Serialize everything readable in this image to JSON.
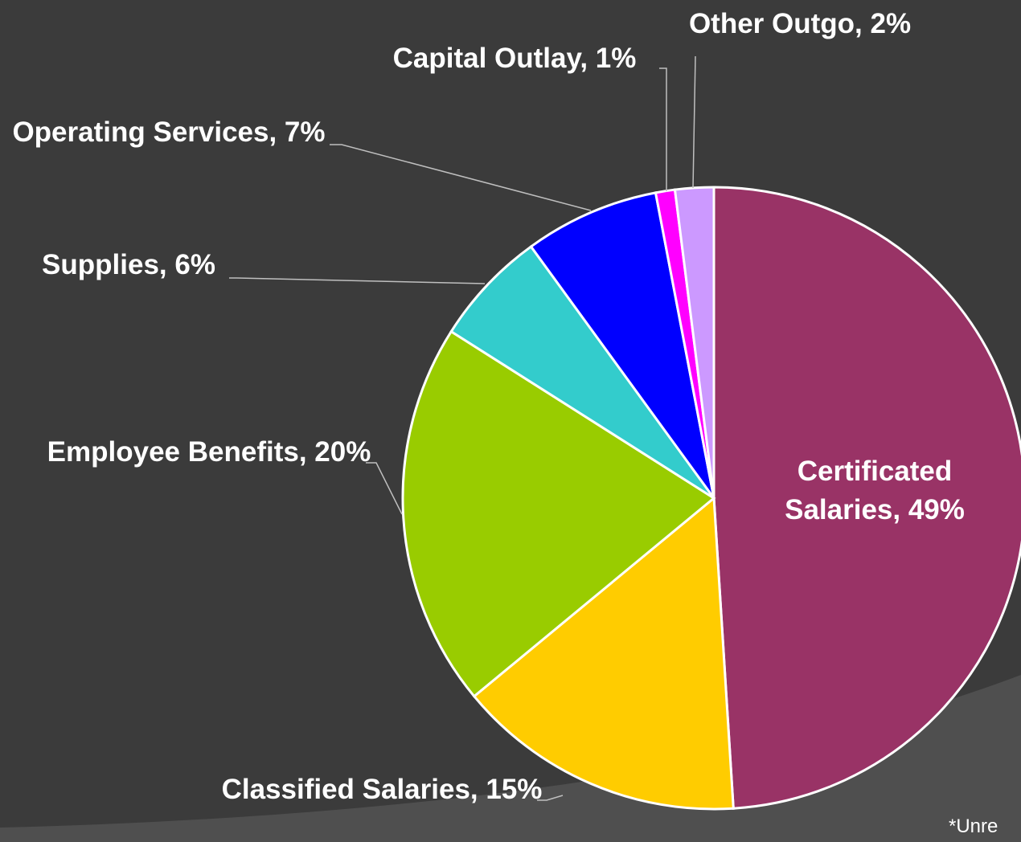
{
  "chart_data": {
    "type": "pie",
    "values": [
      49,
      15,
      20,
      6,
      7,
      1,
      2
    ],
    "value_labels": [
      "Certificated Salaries, 49%",
      "Classified Salaries, 15%",
      "Employee Benefits, 20%",
      "Supplies, 6%",
      "Operating Services, 7%",
      "Capital Outlay, 1%",
      "Other Outgo, 2%"
    ],
    "colors": [
      "#993366",
      "#ffcc00",
      "#99cc00",
      "#33cccc",
      "#0000ff",
      "#ff00ff",
      "#cc99ff"
    ],
    "start_angle": 0,
    "direction": "clockwise",
    "note": "*Unre"
  }
}
